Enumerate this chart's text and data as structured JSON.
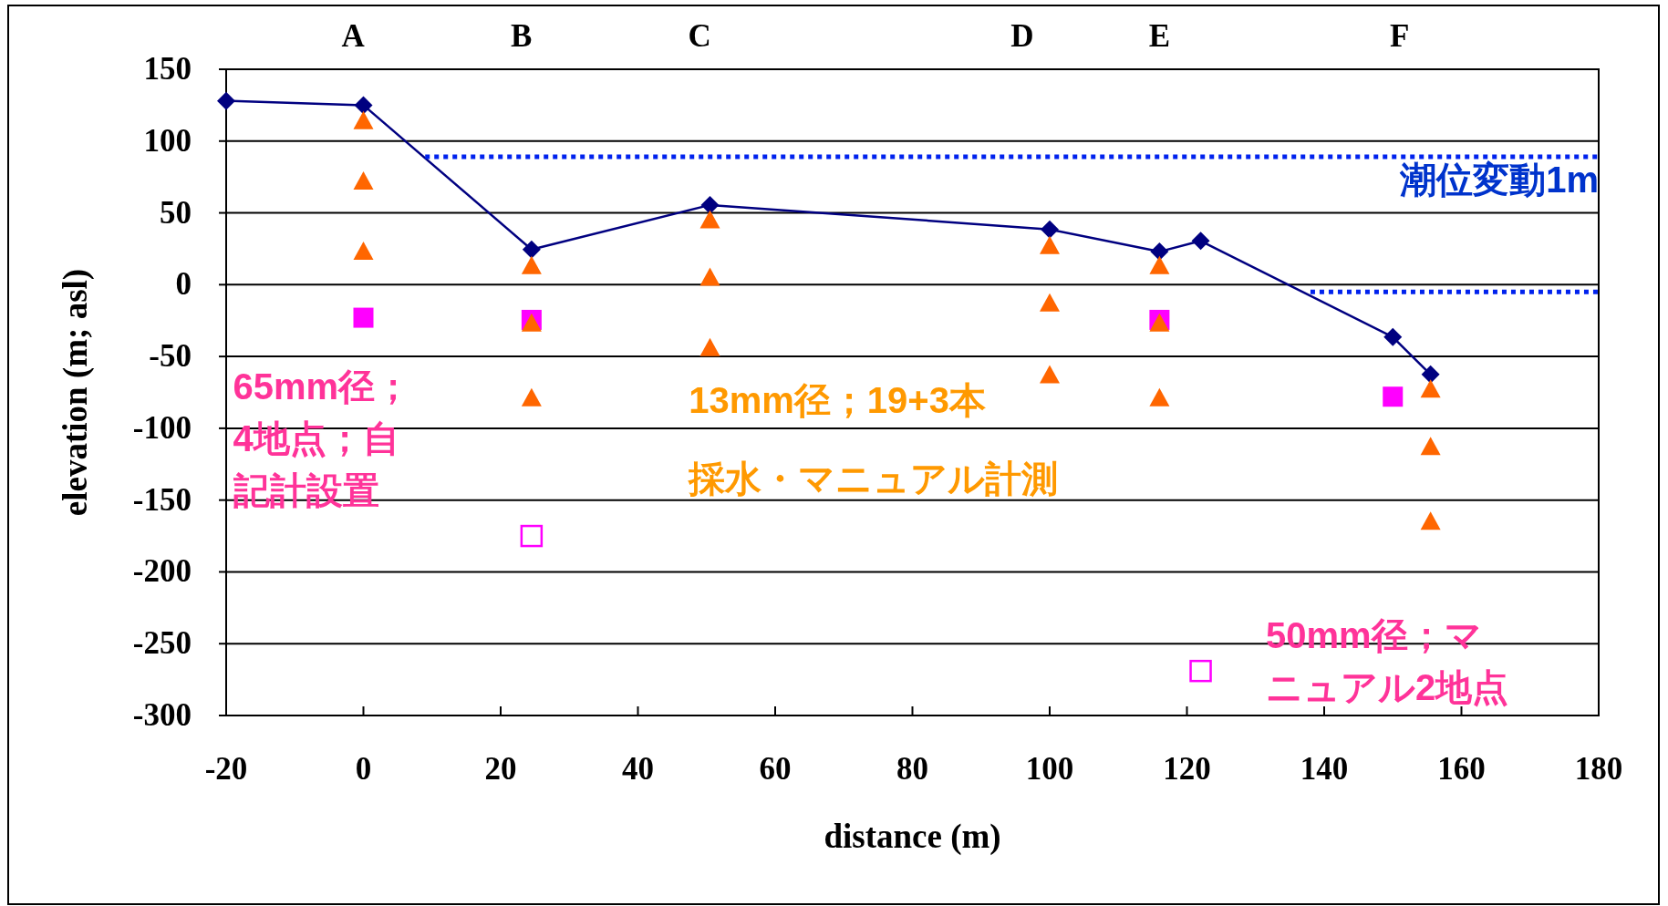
{
  "chart_data": {
    "type": "scatter",
    "xlabel": "distance (m)",
    "ylabel": "elevation (m; asl)",
    "xlim": [
      -20,
      180
    ],
    "xticks": [
      -20,
      0,
      20,
      40,
      60,
      80,
      100,
      120,
      140,
      160,
      180
    ],
    "ylim": [
      -300,
      150
    ],
    "yticks": [
      -300,
      -250,
      -200,
      -150,
      -100,
      -50,
      0,
      50,
      100,
      150
    ],
    "grid": "y",
    "series": [
      {
        "type": "line",
        "color": "#000080",
        "marker": "diamond",
        "line_style": "solid",
        "x": [
          -20,
          0,
          24.5,
          50.5,
          100,
          116,
          122,
          150,
          155.5
        ],
        "values": [
          128,
          125,
          24.5,
          55.5,
          38.5,
          23,
          30.5,
          -36.5,
          -62.5
        ]
      },
      {
        "type": "line",
        "color": "#0022ee",
        "marker": "none",
        "line_style": "dotted",
        "x": [
          9,
          180
        ],
        "values": [
          89,
          89
        ]
      },
      {
        "type": "line",
        "color": "#0022ee",
        "marker": "none",
        "line_style": "dotted",
        "x": [
          138,
          180
        ],
        "values": [
          -5,
          -5
        ]
      },
      {
        "color": "#ff00ff",
        "marker": "square",
        "x": [
          0,
          24.5,
          116,
          150
        ],
        "values": [
          -23,
          -24.5,
          -24.5,
          -78
        ]
      },
      {
        "color": "#ff6600",
        "marker": "triangle",
        "x": [
          0,
          0,
          0,
          24.5,
          24.5,
          24.5,
          50.5,
          50.5,
          50.5,
          100,
          100,
          100,
          116,
          116,
          116,
          155.5,
          155.5,
          155.5
        ],
        "values": [
          114,
          72,
          23,
          13,
          -27,
          -79,
          45,
          5,
          -44,
          27,
          -13,
          -63,
          13,
          -27,
          -79,
          -73,
          -113,
          -165
        ]
      },
      {
        "color": "#ff00ff",
        "marker": "square",
        "x": [
          24.5,
          122
        ],
        "values": [
          -175,
          -269
        ]
      }
    ],
    "annotations": [
      "潮位変動1m",
      "65mm径；4地点；自記計設置",
      "13mm径；19+3本",
      "採水・マニュアル計測",
      "50mm径；マニュアル2地点",
      "A",
      "B",
      "C",
      "D",
      "E",
      "F"
    ]
  }
}
